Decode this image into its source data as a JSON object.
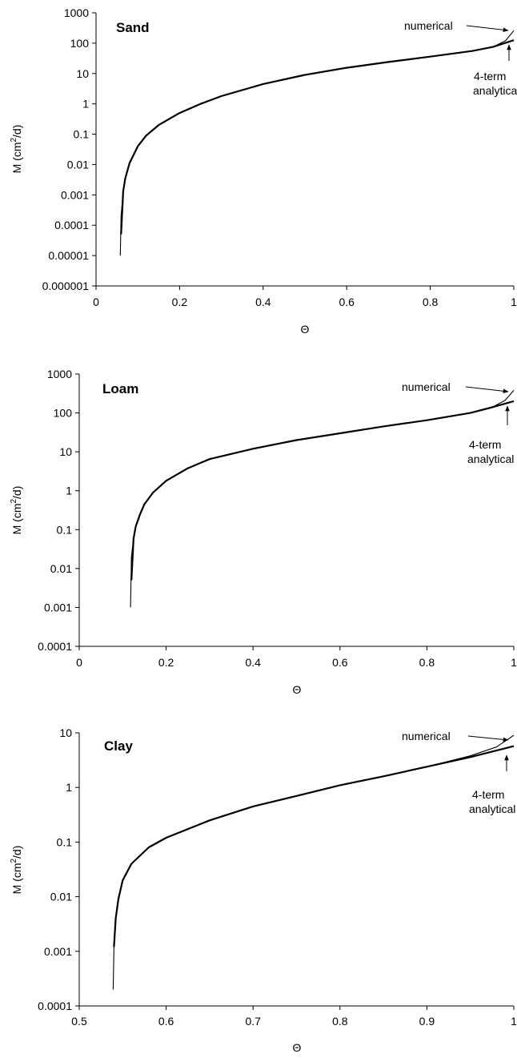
{
  "chart_data": [
    {
      "type": "line",
      "title": "Sand",
      "xlabel": "Θ",
      "ylabel_main": "M (cm",
      "ylabel_sup": "2",
      "ylabel_end": "/d)",
      "xlim": [
        0,
        1
      ],
      "ylim": [
        1e-06,
        1000
      ],
      "y_scale": "log",
      "x_ticks": [
        "0",
        "0.2",
        "0.4",
        "0.6",
        "0.8",
        "1"
      ],
      "y_ticks": [
        "0.000001",
        "0.00001",
        "0.0001",
        "0.001",
        "0.01",
        "0.1",
        "1",
        "10",
        "100",
        "1000"
      ],
      "annotations": [
        "numerical",
        "4-term",
        "analytical"
      ],
      "series": [
        {
          "name": "numerical",
          "x": [
            0.058,
            0.06,
            0.065,
            0.07,
            0.08,
            0.1,
            0.12,
            0.15,
            0.2,
            0.25,
            0.3,
            0.4,
            0.5,
            0.6,
            0.7,
            0.8,
            0.9,
            0.95,
            0.98,
            1.0
          ],
          "y": [
            1e-05,
            0.0002,
            0.0013,
            0.0035,
            0.011,
            0.04,
            0.09,
            0.2,
            0.5,
            1.0,
            1.8,
            4.5,
            9.0,
            15.5,
            24,
            36,
            55,
            75,
            120,
            260
          ]
        },
        {
          "name": "4-term analytical",
          "x": [
            0.06,
            0.065,
            0.07,
            0.08,
            0.1,
            0.12,
            0.15,
            0.2,
            0.25,
            0.3,
            0.4,
            0.5,
            0.6,
            0.7,
            0.8,
            0.9,
            0.95,
            1.0
          ],
          "y": [
            5e-05,
            0.0013,
            0.0035,
            0.011,
            0.04,
            0.09,
            0.2,
            0.5,
            1.0,
            1.8,
            4.5,
            9.0,
            15.5,
            24,
            36,
            55,
            75,
            125
          ]
        }
      ]
    },
    {
      "type": "line",
      "title": "Loam",
      "xlabel": "Θ",
      "ylabel_main": "M (cm",
      "ylabel_sup": "2",
      "ylabel_end": "/d)",
      "xlim": [
        0,
        1
      ],
      "ylim": [
        0.0001,
        1000
      ],
      "y_scale": "log",
      "x_ticks": [
        "0",
        "0.2",
        "0.4",
        "0.6",
        "0.8",
        "1"
      ],
      "y_ticks": [
        "0.0001",
        "0.001",
        "0.01",
        "0.1",
        "1",
        "10",
        "100",
        "1000"
      ],
      "annotations": [
        "numerical",
        "4-term",
        "analytical"
      ],
      "series": [
        {
          "name": "numerical",
          "x": [
            0.118,
            0.12,
            0.125,
            0.13,
            0.14,
            0.15,
            0.17,
            0.2,
            0.25,
            0.3,
            0.4,
            0.5,
            0.6,
            0.7,
            0.8,
            0.9,
            0.95,
            0.98,
            1.0
          ],
          "y": [
            0.001,
            0.02,
            0.06,
            0.12,
            0.25,
            0.45,
            0.9,
            1.8,
            3.8,
            6.5,
            12,
            20,
            30,
            45,
            65,
            100,
            140,
            210,
            380
          ]
        },
        {
          "name": "4-term analytical",
          "x": [
            0.12,
            0.125,
            0.13,
            0.14,
            0.15,
            0.17,
            0.2,
            0.25,
            0.3,
            0.4,
            0.5,
            0.6,
            0.7,
            0.8,
            0.9,
            0.95,
            1.0
          ],
          "y": [
            0.005,
            0.06,
            0.12,
            0.25,
            0.45,
            0.9,
            1.8,
            3.8,
            6.5,
            12,
            20,
            30,
            45,
            65,
            100,
            140,
            200
          ]
        }
      ]
    },
    {
      "type": "line",
      "title": "Clay",
      "xlabel": "Θ",
      "ylabel_main": "M (cm",
      "ylabel_sup": "2",
      "ylabel_end": "/d)",
      "xlim": [
        0.5,
        1
      ],
      "ylim": [
        0.0001,
        10
      ],
      "y_scale": "log",
      "x_ticks": [
        "0.5",
        "0.6",
        "0.7",
        "0.8",
        "0.9",
        "1"
      ],
      "y_ticks": [
        "0.0001",
        "0.001",
        "0.01",
        "0.1",
        "1",
        "10"
      ],
      "annotations": [
        "numerical",
        "4-term",
        "analytical"
      ],
      "series": [
        {
          "name": "numerical",
          "x": [
            0.539,
            0.54,
            0.542,
            0.545,
            0.55,
            0.56,
            0.58,
            0.6,
            0.65,
            0.7,
            0.75,
            0.8,
            0.85,
            0.9,
            0.95,
            0.98,
            1.0
          ],
          "y": [
            0.0002,
            0.0012,
            0.004,
            0.009,
            0.02,
            0.04,
            0.08,
            0.12,
            0.25,
            0.45,
            0.7,
            1.1,
            1.6,
            2.4,
            3.8,
            5.5,
            9.0
          ]
        },
        {
          "name": "4-term analytical",
          "x": [
            0.54,
            0.542,
            0.545,
            0.55,
            0.56,
            0.58,
            0.6,
            0.65,
            0.7,
            0.75,
            0.8,
            0.85,
            0.9,
            0.95,
            1.0
          ],
          "y": [
            0.0012,
            0.004,
            0.009,
            0.02,
            0.04,
            0.08,
            0.12,
            0.25,
            0.45,
            0.7,
            1.1,
            1.6,
            2.4,
            3.6,
            5.7
          ]
        }
      ]
    }
  ]
}
